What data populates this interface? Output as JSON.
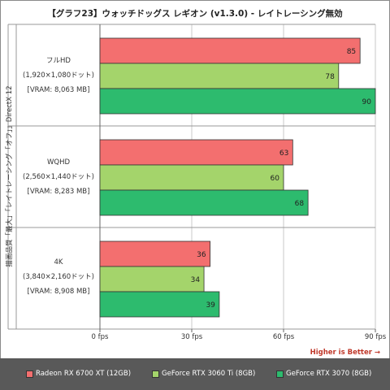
{
  "title": "【グラフ23】ウォッチドッグス レギオン (v1.3.0) - レイトレーシング無効",
  "vertical_label": "描画品質「最大」「レイトレーシング「オフ」」DirectX 12",
  "higher_is_better": "Higher is Better →",
  "groups": [
    {
      "line1": "フルHD",
      "line2": "(1,920×1,080ドット)",
      "line3": "[VRAM: 8,063 MB]"
    },
    {
      "line1": "WQHD",
      "line2": "(2,560×1,440ドット)",
      "line3": "[VRAM: 8,283 MB]"
    },
    {
      "line1": "4K",
      "line2": "(3,840×2,160ドット)",
      "line3": "[VRAM: 8,908 MB]"
    }
  ],
  "legend": [
    {
      "label": "Radeon RX 6700 XT (12GB)",
      "color": "#f36f6f"
    },
    {
      "label": "GeForce RTX 3060 Ti (8GB)",
      "color": "#a4d46b"
    },
    {
      "label": "GeForce RTX 3070 (8GB)",
      "color": "#2dbb6e"
    }
  ],
  "chart_data": {
    "type": "bar",
    "orientation": "horizontal",
    "title": "【グラフ23】ウォッチドッグス レギオン (v1.3.0) - レイトレーシング無効",
    "categories": [
      "フルHD",
      "WQHD",
      "4K"
    ],
    "series": [
      {
        "name": "Radeon RX 6700 XT (12GB)",
        "color": "#f36f6f",
        "values": [
          85,
          63,
          36
        ]
      },
      {
        "name": "GeForce RTX 3060 Ti (8GB)",
        "color": "#a4d46b",
        "values": [
          78,
          60,
          34
        ]
      },
      {
        "name": "GeForce RTX 3070 (8GB)",
        "color": "#2dbb6e",
        "values": [
          90,
          68,
          39
        ]
      }
    ],
    "xlim": [
      0,
      90
    ],
    "xticks": [
      "0 fps",
      "30 fps",
      "60 fps",
      "90 fps"
    ],
    "xtick_values": [
      0,
      30,
      60,
      90
    ],
    "grid": true,
    "legend_position": "bottom"
  }
}
